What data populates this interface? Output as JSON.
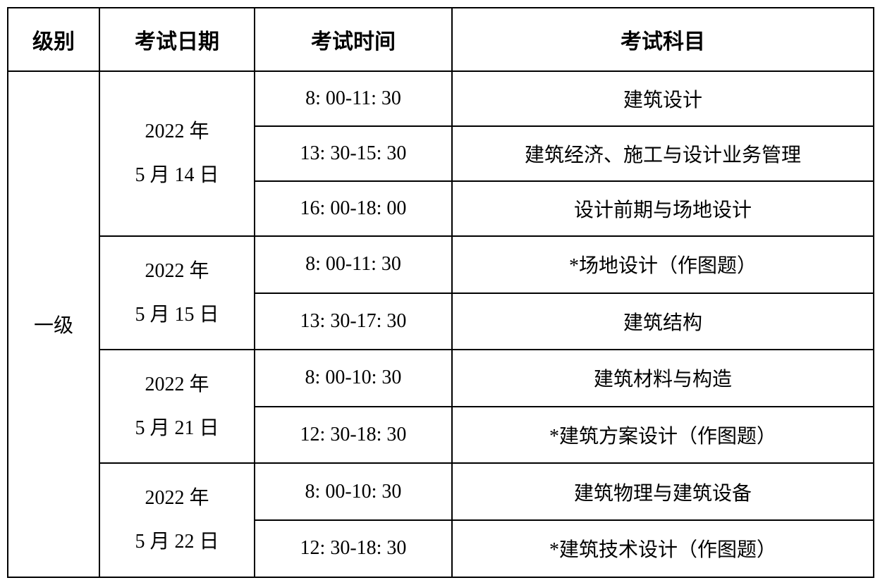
{
  "table": {
    "headers": {
      "level": "级别",
      "date": "考试日期",
      "time": "考试时间",
      "subject": "考试科目"
    },
    "level_value": "一级",
    "dates": {
      "d1_year": "2022 年",
      "d1_md": "5 月 14 日",
      "d2_year": "2022 年",
      "d2_md": "5 月 15 日",
      "d3_year": "2022 年",
      "d3_md": "5 月 21 日",
      "d4_year": "2022 年",
      "d4_md": "5 月 22 日"
    },
    "rows": [
      {
        "time": "8: 00-11: 30",
        "subject": "建筑设计"
      },
      {
        "time": "13: 30-15: 30",
        "subject": "建筑经济、施工与设计业务管理"
      },
      {
        "time": "16: 00-18: 00",
        "subject": "设计前期与场地设计"
      },
      {
        "time": "8: 00-11: 30",
        "subject": "*场地设计（作图题）"
      },
      {
        "time": "13: 30-17: 30",
        "subject": "建筑结构"
      },
      {
        "time": "8: 00-10: 30",
        "subject": "建筑材料与构造"
      },
      {
        "time": "12: 30-18: 30",
        "subject": "*建筑方案设计（作图题）"
      },
      {
        "time": "8: 00-10: 30",
        "subject": "建筑物理与建筑设备"
      },
      {
        "time": "12: 30-18: 30",
        "subject": "*建筑技术设计（作图题）"
      }
    ],
    "styling": {
      "border_color": "#000000",
      "border_width": 2,
      "background_color": "#ffffff",
      "text_color": "#000000",
      "header_fontsize": 30,
      "cell_fontsize": 28,
      "font_family": "KaiTi",
      "col_widths": {
        "level": 130,
        "date": 220,
        "time": 280,
        "subject": 598
      }
    }
  }
}
